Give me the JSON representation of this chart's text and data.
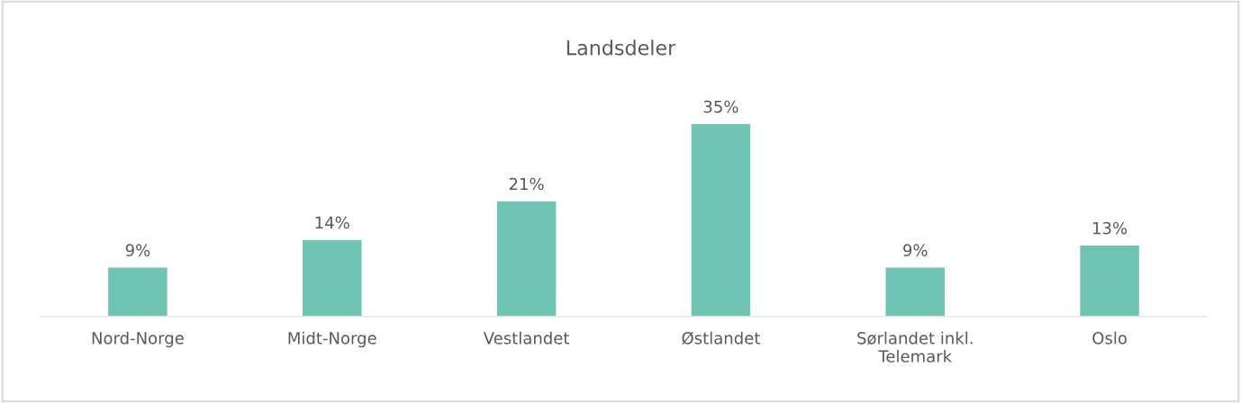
{
  "chart_data": {
    "type": "bar",
    "title": "Landsdeler",
    "categories": [
      "Nord-Norge",
      "Midt-Norge",
      "Vestlandet",
      "Østlandet",
      "Sørlandet inkl.\nTelemark",
      "Oslo"
    ],
    "values": [
      9,
      14,
      21,
      35,
      9,
      13
    ],
    "value_labels": [
      "9%",
      "14%",
      "21%",
      "35%",
      "9%",
      "13%"
    ],
    "color": "#70c4b4",
    "grid": false,
    "legend": false
  }
}
